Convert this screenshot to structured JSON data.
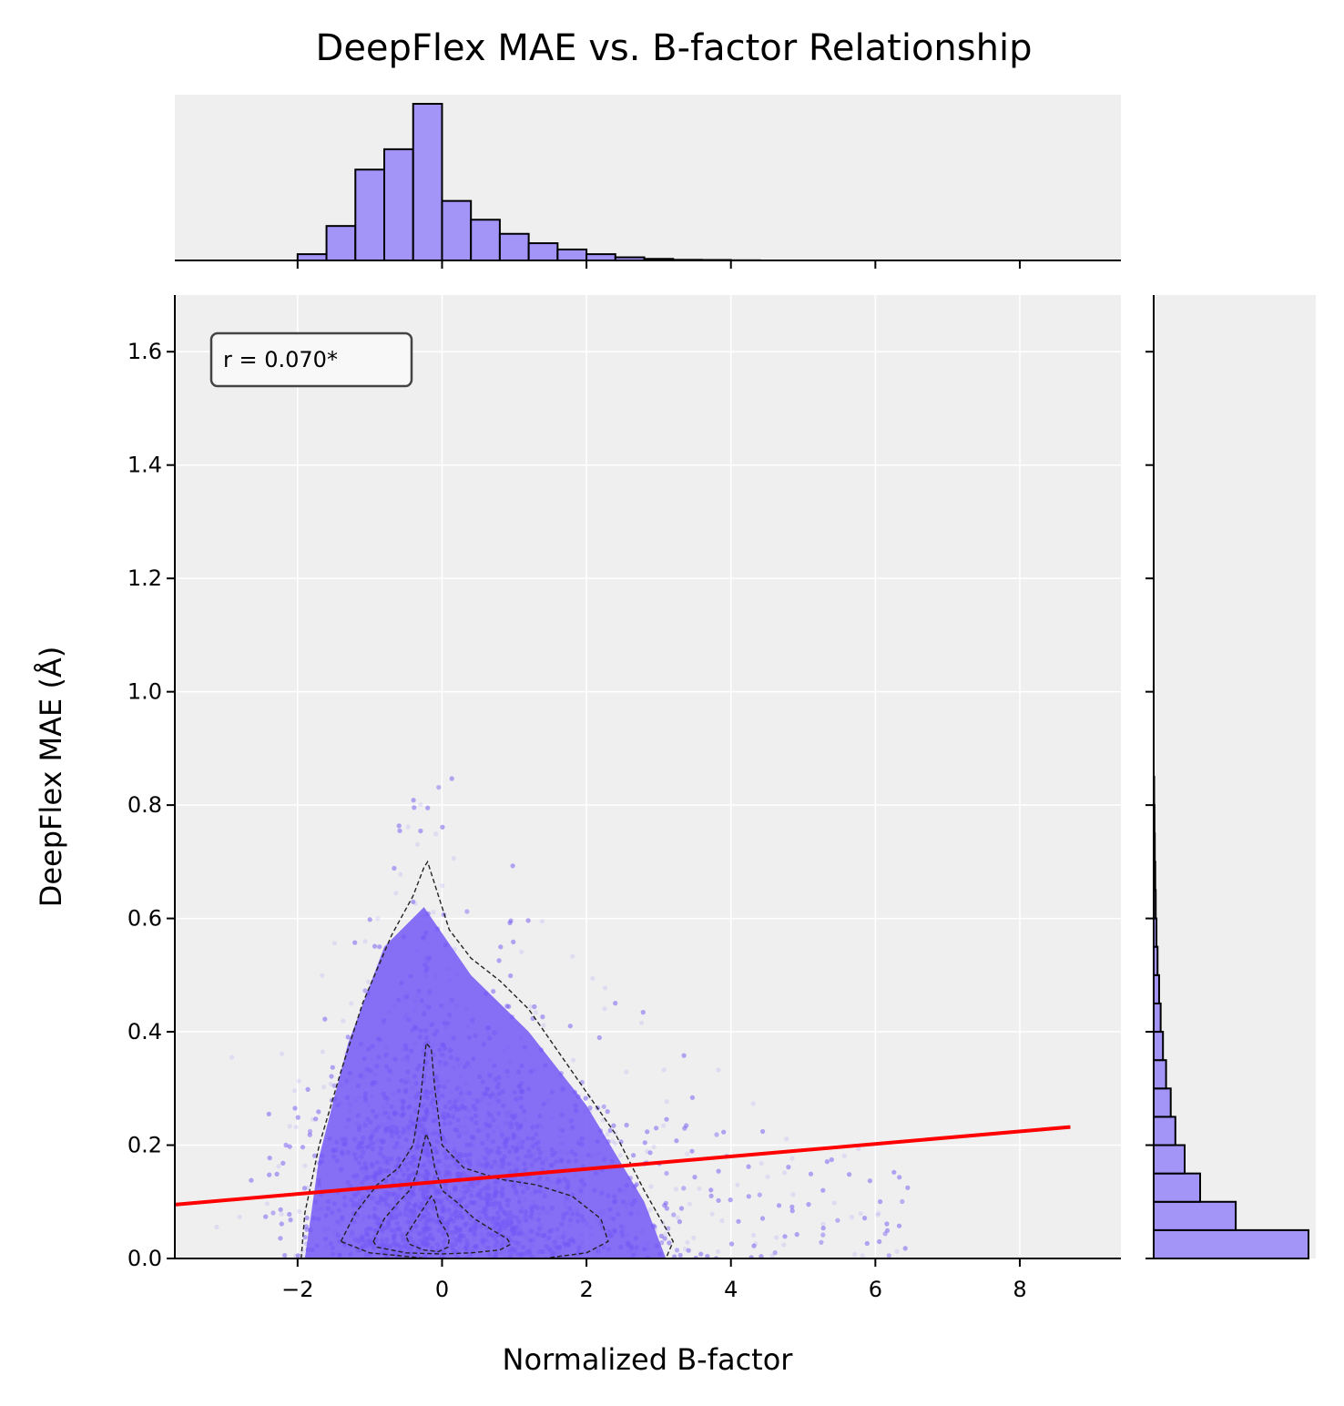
{
  "colors": {
    "panel_bg": "#efefef",
    "grid": "#ffffff",
    "points": "#7357f6",
    "hist_fill": "#a394f7",
    "hist_edge": "#000000",
    "regression": "#ff0000",
    "contour": "#222222"
  },
  "chart_data": {
    "type": "scatter",
    "title": "DeepFlex MAE vs. B-factor Relationship",
    "xlabel": "Normalized B-factor",
    "ylabel": "DeepFlex MAE (Å)",
    "xlim": [
      -3.7,
      9.4
    ],
    "ylim": [
      0.0,
      1.7
    ],
    "xticks": [
      -2,
      0,
      2,
      4,
      6,
      8
    ],
    "xtick_labels": [
      "−2",
      "0",
      "2",
      "4",
      "6",
      "8"
    ],
    "yticks": [
      0.0,
      0.2,
      0.4,
      0.6,
      0.8,
      1.0,
      1.2,
      1.4,
      1.6
    ],
    "ytick_labels": [
      "0.0",
      "0.2",
      "0.4",
      "0.6",
      "0.8",
      "1.0",
      "1.2",
      "1.4",
      "1.6"
    ],
    "grid": true,
    "annotation": "r = 0.070*",
    "regression_line": {
      "x": [
        -3.7,
        8.7
      ],
      "y": [
        0.095,
        0.232
      ]
    },
    "contours": [
      {
        "x": [
          -1.95,
          -1.9,
          -1.7,
          -1.4,
          -1.1,
          -0.7,
          -0.4,
          -0.25,
          -0.2,
          -0.1,
          0.1,
          0.4,
          0.8,
          1.2,
          1.8,
          2.4,
          2.8,
          3.2,
          3.1,
          2.5,
          1.5,
          0.5,
          -0.5,
          -1.5,
          -1.95
        ],
        "y": [
          0.0,
          0.08,
          0.2,
          0.33,
          0.45,
          0.57,
          0.64,
          0.69,
          0.7,
          0.66,
          0.58,
          0.53,
          0.49,
          0.44,
          0.33,
          0.22,
          0.12,
          0.03,
          0.0,
          0.0,
          0.0,
          0.0,
          0.0,
          0.0,
          0.0
        ]
      },
      {
        "x": [
          -1.4,
          -1.2,
          -0.9,
          -0.6,
          -0.4,
          -0.3,
          -0.22,
          -0.15,
          -0.1,
          0.0,
          0.3,
          0.8,
          1.3,
          1.8,
          2.2,
          2.3,
          2.0,
          1.4,
          0.6,
          -0.2,
          -1.0,
          -1.4
        ],
        "y": [
          0.03,
          0.08,
          0.13,
          0.16,
          0.2,
          0.28,
          0.38,
          0.37,
          0.3,
          0.2,
          0.16,
          0.14,
          0.13,
          0.11,
          0.07,
          0.03,
          0.01,
          0.0,
          0.0,
          0.0,
          0.01,
          0.03
        ]
      },
      {
        "x": [
          -0.95,
          -0.8,
          -0.6,
          -0.45,
          -0.35,
          -0.28,
          -0.22,
          -0.16,
          -0.1,
          0.0,
          0.2,
          0.45,
          0.7,
          0.9,
          0.95,
          0.8,
          0.4,
          0.0,
          -0.5,
          -0.9,
          -0.95
        ],
        "y": [
          0.03,
          0.07,
          0.1,
          0.12,
          0.15,
          0.19,
          0.22,
          0.2,
          0.16,
          0.12,
          0.1,
          0.07,
          0.05,
          0.035,
          0.025,
          0.015,
          0.01,
          0.008,
          0.01,
          0.02,
          0.03
        ]
      },
      {
        "x": [
          -0.5,
          -0.4,
          -0.3,
          -0.2,
          -0.15,
          -0.1,
          -0.05,
          0.05,
          0.1,
          0.08,
          -0.05,
          -0.25,
          -0.45,
          -0.5
        ],
        "y": [
          0.04,
          0.06,
          0.08,
          0.1,
          0.11,
          0.1,
          0.07,
          0.05,
          0.035,
          0.02,
          0.012,
          0.015,
          0.025,
          0.04
        ]
      }
    ],
    "top_histogram": {
      "bin_edges": [
        -2.0,
        -1.6,
        -1.2,
        -0.8,
        -0.4,
        0.0,
        0.4,
        0.8,
        1.2,
        1.6,
        2.0,
        2.4,
        2.8,
        3.2,
        3.6,
        4.0,
        4.4,
        4.8,
        5.2,
        5.6,
        6.0,
        6.4,
        6.8,
        7.2,
        7.6,
        8.0,
        8.4,
        8.8
      ],
      "values": [
        4,
        22,
        58,
        71,
        100,
        38,
        26,
        17,
        11,
        7,
        4,
        2,
        1,
        0.4,
        0.3,
        0.1,
        0,
        0,
        0,
        0,
        0,
        0,
        0,
        0,
        0,
        0,
        0
      ],
      "ymax": 100
    },
    "right_histogram": {
      "bin_edges": [
        0.0,
        0.05,
        0.1,
        0.15,
        0.2,
        0.25,
        0.3,
        0.35,
        0.4,
        0.45,
        0.5,
        0.55,
        0.6,
        0.65,
        0.7,
        0.75,
        0.8,
        0.85
      ],
      "values": [
        100,
        53,
        30,
        20,
        14,
        11,
        8,
        6,
        4.5,
        3.5,
        2.5,
        1.8,
        1.3,
        1.0,
        0.7,
        0.5,
        0.3
      ],
      "xmax": 100
    }
  }
}
